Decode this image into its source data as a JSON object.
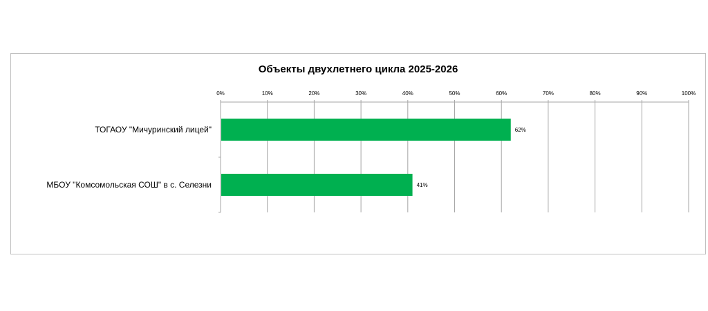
{
  "chart_data": {
    "type": "bar",
    "orientation": "horizontal",
    "title": "Объекты двухлетнего цикла 2025-2026",
    "categories": [
      "ТОГАОУ \"Мичуринский лицей\"",
      "МБОУ \"Комсомольская СОШ\" в с. Селезни"
    ],
    "values": [
      0.62,
      0.41
    ],
    "data_labels": [
      "62%",
      "41%"
    ],
    "x_ticks": [
      "0%",
      "10%",
      "20%",
      "30%",
      "40%",
      "50%",
      "60%",
      "70%",
      "80%",
      "90%",
      "100%"
    ],
    "xlim": [
      0,
      1
    ],
    "axis_position": "top",
    "grid": true,
    "legend": false,
    "bar_color": "#00b050",
    "grid_color": "#a6a6a6"
  }
}
